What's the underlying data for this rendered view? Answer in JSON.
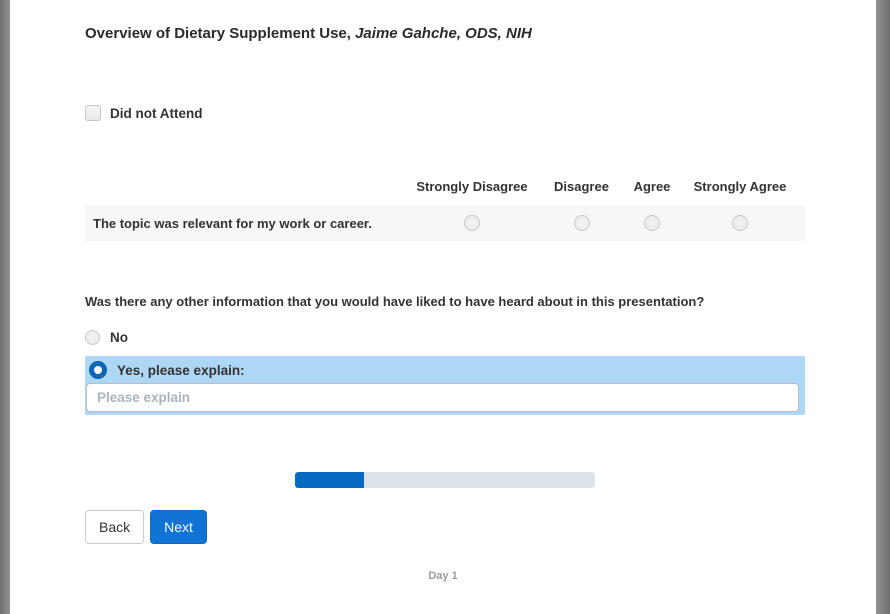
{
  "page": {
    "title_regular": "Overview of Dietary Supplement Use, ",
    "title_italic": "Jaime Gahche, ODS, NIH"
  },
  "attendance": {
    "label": "Did not Attend",
    "checked": false
  },
  "matrix": {
    "columns": [
      "Strongly Disagree",
      "Disagree",
      "Agree",
      "Strongly Agree"
    ],
    "rows": [
      {
        "statement": "The topic was relevant for my work or career.",
        "selected": null
      }
    ]
  },
  "open_question": {
    "text": "Was there any other information that you would have liked to have heard about in this presentation?",
    "options": [
      {
        "label": "No",
        "selected": false
      },
      {
        "label": "Yes, please explain:",
        "selected": true
      }
    ],
    "input": {
      "value": "",
      "placeholder": "Please explain"
    }
  },
  "progress": {
    "percent": 23
  },
  "nav": {
    "back_label": "Back",
    "next_label": "Next"
  },
  "footer": {
    "text": "Day 1"
  },
  "colors": {
    "highlight_blue": "#aed6f5",
    "selected_radio_blue": "#0e64b4",
    "progress_blue": "#0568c1",
    "progress_track": "#dbe2e8",
    "next_button_blue": "#1173d4",
    "matrix_row_bg": "#f7f7f7"
  }
}
